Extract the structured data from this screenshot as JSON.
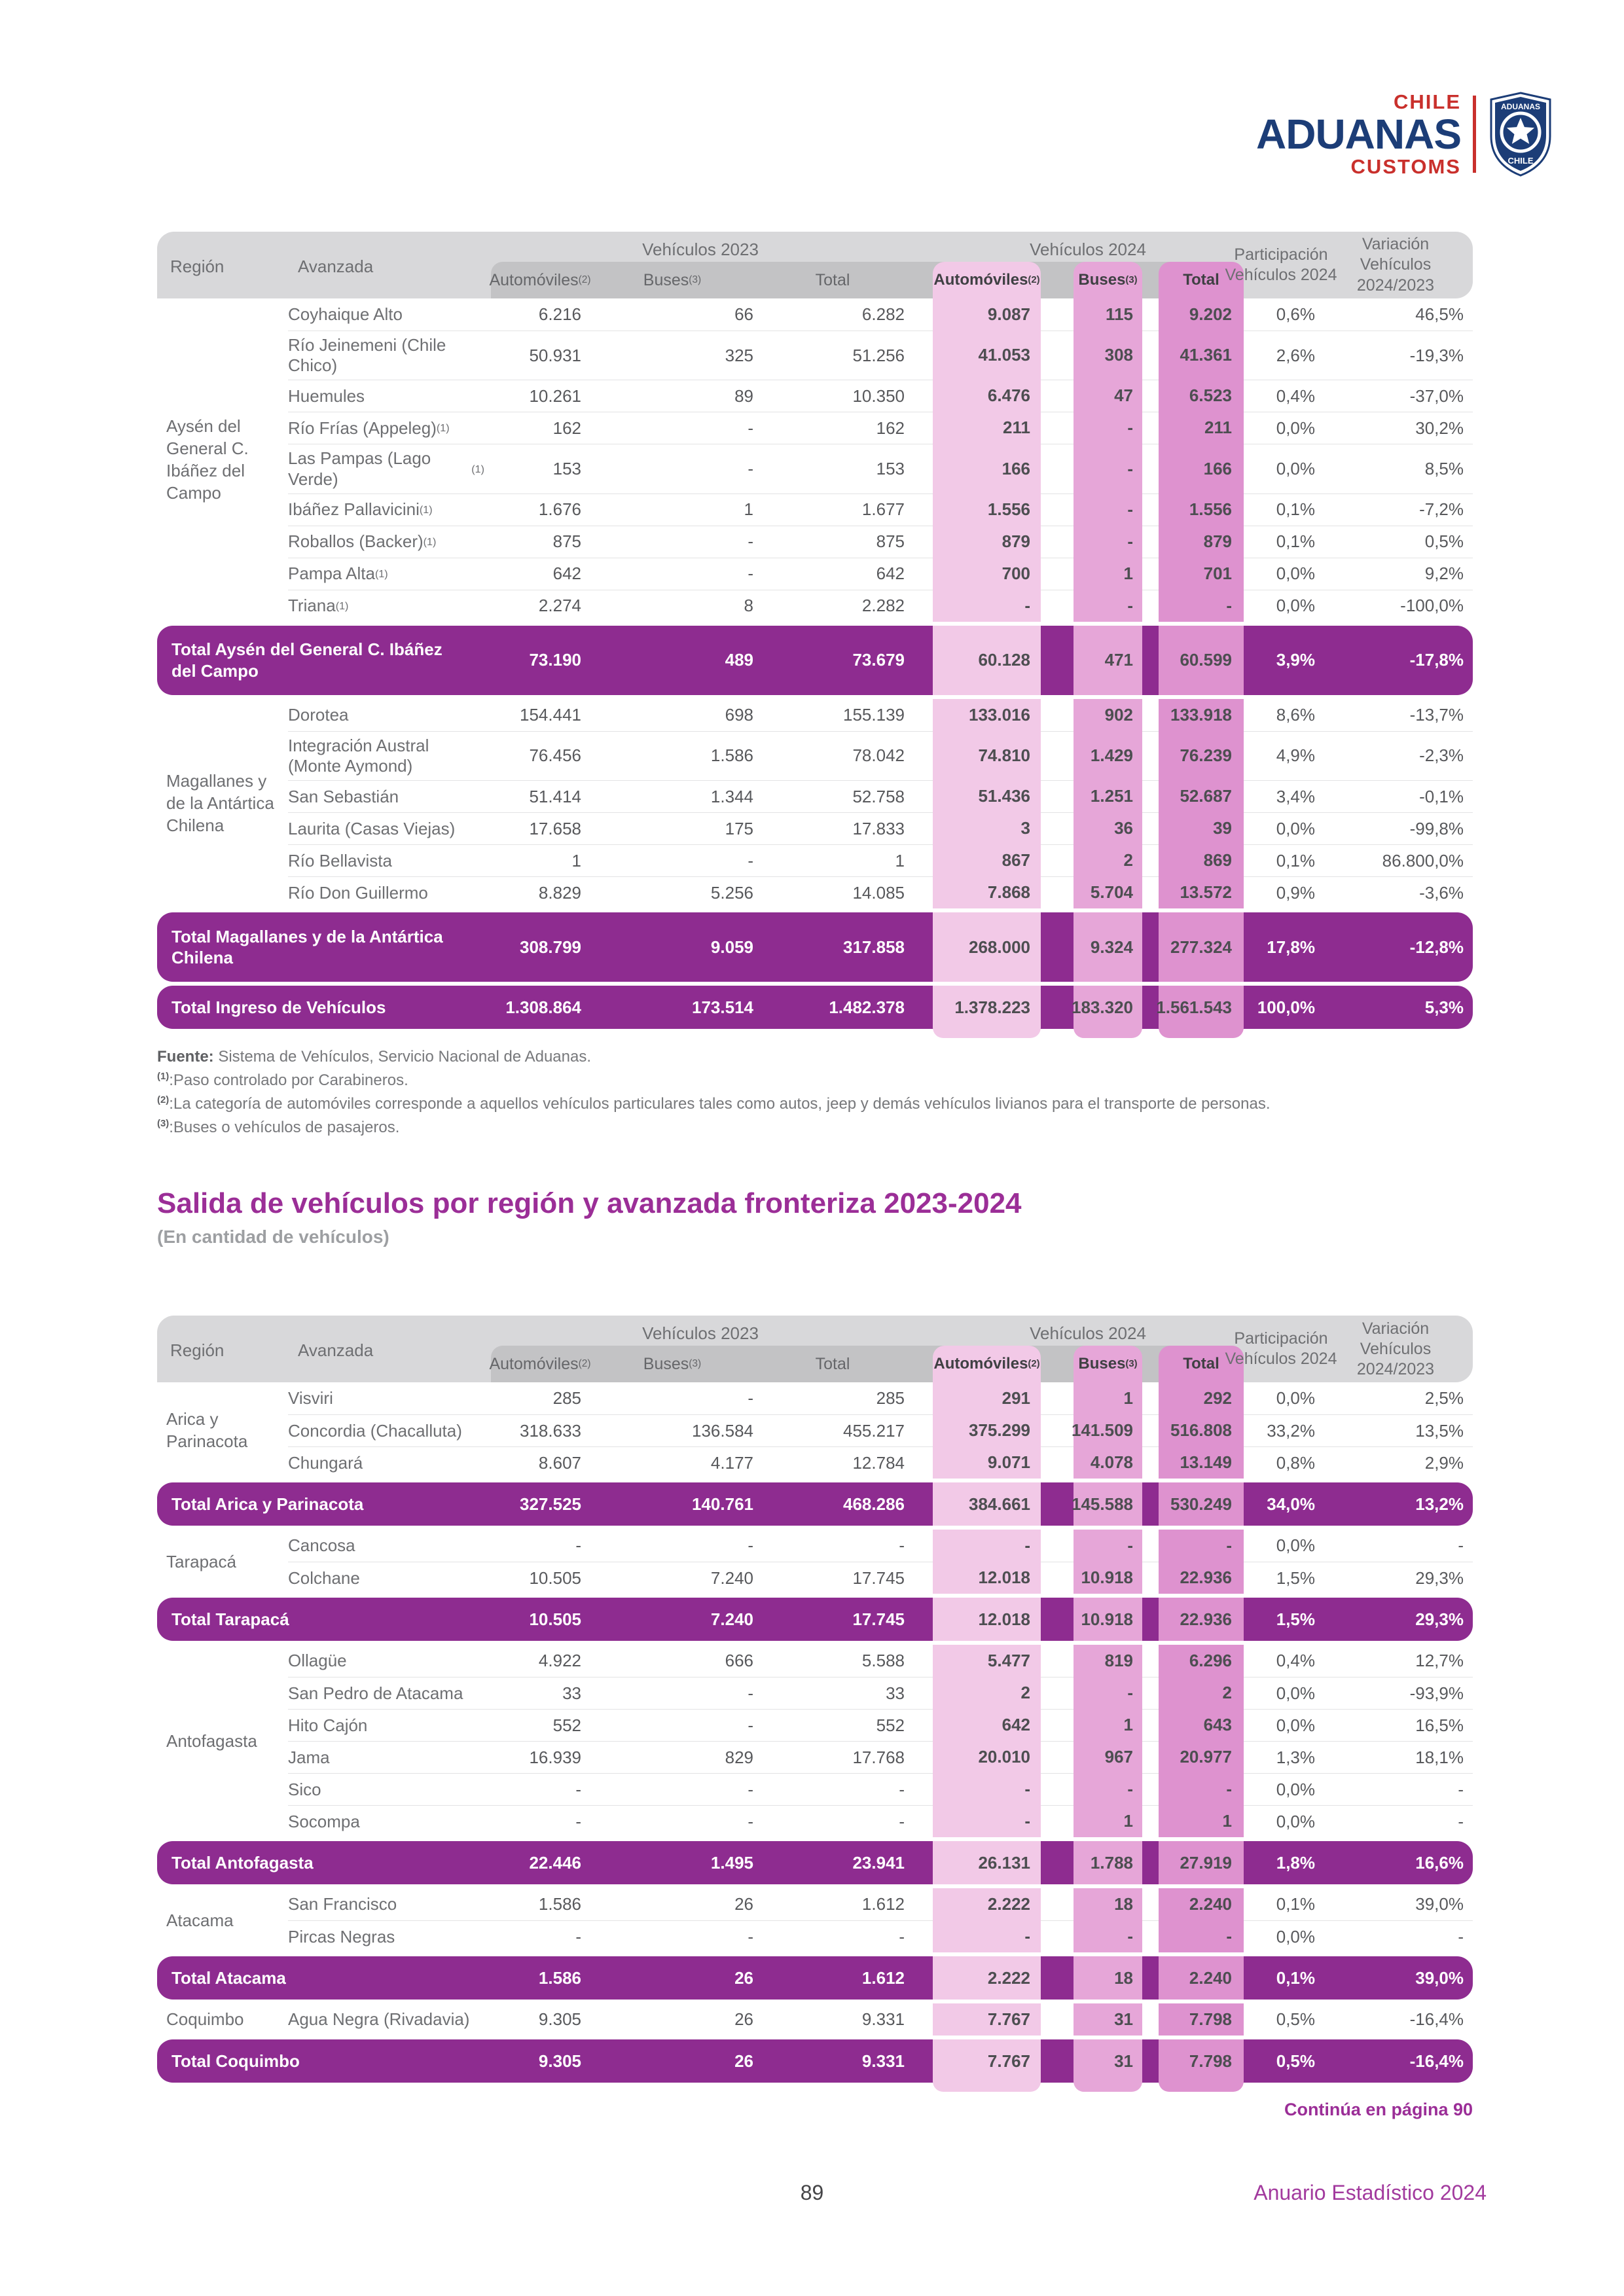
{
  "logo": {
    "chile": "CHILE",
    "aduanas": "ADUANAS",
    "customs": "CUSTOMS",
    "badge_top": "ADUANAS",
    "badge_bottom": "CHILE"
  },
  "headers": {
    "region": "Región",
    "avanzada": "Avanzada",
    "g2023": "Vehículos 2023",
    "g2024": "Vehículos 2024",
    "automoviles": "Automóviles",
    "automoviles_sup": "(2)",
    "buses": "Buses",
    "buses_sup": "(3)",
    "total": "Total",
    "participacion": "Participación Vehículos 2024",
    "variacion": "Variación Vehículos 2024/2023"
  },
  "table1": {
    "sections": [
      {
        "region": "Aysén del General C. Ibáñez del Campo",
        "rows": [
          {
            "name": "Coyhaique Alto",
            "sup": "",
            "v": [
              "6.216",
              "66",
              "6.282",
              "9.087",
              "115",
              "9.202",
              "0,6%",
              "46,5%"
            ]
          },
          {
            "name": "Río Jeinemeni (Chile Chico)",
            "sup": "",
            "v": [
              "50.931",
              "325",
              "51.256",
              "41.053",
              "308",
              "41.361",
              "2,6%",
              "-19,3%"
            ]
          },
          {
            "name": "Huemules",
            "sup": "",
            "v": [
              "10.261",
              "89",
              "10.350",
              "6.476",
              "47",
              "6.523",
              "0,4%",
              "-37,0%"
            ]
          },
          {
            "name": "Río Frías (Appeleg)",
            "sup": "(1)",
            "v": [
              "162",
              "-",
              "162",
              "211",
              "-",
              "211",
              "0,0%",
              "30,2%"
            ]
          },
          {
            "name": "Las Pampas (Lago Verde)",
            "sup": "(1)",
            "v": [
              "153",
              "-",
              "153",
              "166",
              "-",
              "166",
              "0,0%",
              "8,5%"
            ]
          },
          {
            "name": "Ibáñez Pallavicini",
            "sup": "(1)",
            "v": [
              "1.676",
              "1",
              "1.677",
              "1.556",
              "-",
              "1.556",
              "0,1%",
              "-7,2%"
            ]
          },
          {
            "name": "Roballos (Backer)",
            "sup": "(1)",
            "v": [
              "875",
              "-",
              "875",
              "879",
              "-",
              "879",
              "0,1%",
              "0,5%"
            ]
          },
          {
            "name": "Pampa Alta",
            "sup": "(1)",
            "v": [
              "642",
              "-",
              "642",
              "700",
              "1",
              "701",
              "0,0%",
              "9,2%"
            ]
          },
          {
            "name": "Triana",
            "sup": "(1)",
            "v": [
              "2.274",
              "8",
              "2.282",
              "-",
              "-",
              "-",
              "0,0%",
              "-100,0%"
            ]
          }
        ],
        "total": {
          "label": "Total Aysén del General C. Ibáñez del Campo",
          "two_line": true,
          "v": [
            "73.190",
            "489",
            "73.679",
            "60.128",
            "471",
            "60.599",
            "3,9%",
            "-17,8%"
          ]
        }
      },
      {
        "region": "Magallanes y de la Antártica Chilena",
        "rows": [
          {
            "name": "Dorotea",
            "sup": "",
            "v": [
              "154.441",
              "698",
              "155.139",
              "133.016",
              "902",
              "133.918",
              "8,6%",
              "-13,7%"
            ]
          },
          {
            "name": "Integración Austral (Monte Aymond)",
            "sup": "",
            "v": [
              "76.456",
              "1.586",
              "78.042",
              "74.810",
              "1.429",
              "76.239",
              "4,9%",
              "-2,3%"
            ]
          },
          {
            "name": "San Sebastián",
            "sup": "",
            "v": [
              "51.414",
              "1.344",
              "52.758",
              "51.436",
              "1.251",
              "52.687",
              "3,4%",
              "-0,1%"
            ]
          },
          {
            "name": "Laurita (Casas Viejas)",
            "sup": "",
            "v": [
              "17.658",
              "175",
              "17.833",
              "3",
              "36",
              "39",
              "0,0%",
              "-99,8%"
            ]
          },
          {
            "name": "Río Bellavista",
            "sup": "",
            "v": [
              "1",
              "-",
              "1",
              "867",
              "2",
              "869",
              "0,1%",
              "86.800,0%"
            ]
          },
          {
            "name": "Río Don Guillermo",
            "sup": "",
            "v": [
              "8.829",
              "5.256",
              "14.085",
              "7.868",
              "5.704",
              "13.572",
              "0,9%",
              "-3,6%"
            ]
          }
        ],
        "total": {
          "label": "Total Magallanes y de la Antártica Chilena",
          "two_line": true,
          "v": [
            "308.799",
            "9.059",
            "317.858",
            "268.000",
            "9.324",
            "277.324",
            "17,8%",
            "-12,8%"
          ]
        }
      }
    ],
    "grand_total": {
      "label": "Total Ingreso de Vehículos",
      "v": [
        "1.308.864",
        "173.514",
        "1.482.378",
        "1.378.223",
        "183.320",
        "1.561.543",
        "100,0%",
        "5,3%"
      ]
    }
  },
  "notes": {
    "fuente_label": "Fuente:",
    "fuente_text": " Sistema de Vehículos, Servicio Nacional de Aduanas.",
    "items": [
      {
        "sup": "(1)",
        "text": ":Paso controlado por Carabineros."
      },
      {
        "sup": "(2)",
        "text": ":La categoría de automóviles corresponde a aquellos vehículos particulares tales como autos, jeep y demás vehículos livianos para el transporte de personas."
      },
      {
        "sup": "(3)",
        "text": ":Buses o vehículos de pasajeros."
      }
    ]
  },
  "section2": {
    "title": "Salida de vehículos por región y avanzada fronteriza 2023-2024",
    "subtitle": "(En cantidad de vehículos)"
  },
  "table2": {
    "sections": [
      {
        "region": "Arica y Parinacota",
        "rows": [
          {
            "name": "Visviri",
            "sup": "",
            "v": [
              "285",
              "-",
              "285",
              "291",
              "1",
              "292",
              "0,0%",
              "2,5%"
            ]
          },
          {
            "name": "Concordia (Chacalluta)",
            "sup": "",
            "v": [
              "318.633",
              "136.584",
              "455.217",
              "375.299",
              "141.509",
              "516.808",
              "33,2%",
              "13,5%"
            ]
          },
          {
            "name": "Chungará",
            "sup": "",
            "v": [
              "8.607",
              "4.177",
              "12.784",
              "9.071",
              "4.078",
              "13.149",
              "0,8%",
              "2,9%"
            ]
          }
        ],
        "total": {
          "label": "Total Arica y Parinacota",
          "two_line": false,
          "v": [
            "327.525",
            "140.761",
            "468.286",
            "384.661",
            "145.588",
            "530.249",
            "34,0%",
            "13,2%"
          ]
        }
      },
      {
        "region": "Tarapacá",
        "rows": [
          {
            "name": "Cancosa",
            "sup": "",
            "v": [
              "-",
              "-",
              "-",
              "-",
              "-",
              "-",
              "0,0%",
              "-"
            ]
          },
          {
            "name": "Colchane",
            "sup": "",
            "v": [
              "10.505",
              "7.240",
              "17.745",
              "12.018",
              "10.918",
              "22.936",
              "1,5%",
              "29,3%"
            ]
          }
        ],
        "total": {
          "label": "Total Tarapacá",
          "two_line": false,
          "v": [
            "10.505",
            "7.240",
            "17.745",
            "12.018",
            "10.918",
            "22.936",
            "1,5%",
            "29,3%"
          ]
        }
      },
      {
        "region": "Antofagasta",
        "rows": [
          {
            "name": "Ollagüe",
            "sup": "",
            "v": [
              "4.922",
              "666",
              "5.588",
              "5.477",
              "819",
              "6.296",
              "0,4%",
              "12,7%"
            ]
          },
          {
            "name": "San Pedro de Atacama",
            "sup": "",
            "v": [
              "33",
              "-",
              "33",
              "2",
              "-",
              "2",
              "0,0%",
              "-93,9%"
            ]
          },
          {
            "name": "Hito Cajón",
            "sup": "",
            "v": [
              "552",
              "-",
              "552",
              "642",
              "1",
              "643",
              "0,0%",
              "16,5%"
            ]
          },
          {
            "name": "Jama",
            "sup": "",
            "v": [
              "16.939",
              "829",
              "17.768",
              "20.010",
              "967",
              "20.977",
              "1,3%",
              "18,1%"
            ]
          },
          {
            "name": "Sico",
            "sup": "",
            "v": [
              "-",
              "-",
              "-",
              "-",
              "-",
              "-",
              "0,0%",
              "-"
            ]
          },
          {
            "name": "Socompa",
            "sup": "",
            "v": [
              "-",
              "-",
              "-",
              "-",
              "1",
              "1",
              "0,0%",
              "-"
            ]
          }
        ],
        "total": {
          "label": "Total Antofagasta",
          "two_line": false,
          "v": [
            "22.446",
            "1.495",
            "23.941",
            "26.131",
            "1.788",
            "27.919",
            "1,8%",
            "16,6%"
          ]
        }
      },
      {
        "region": "Atacama",
        "rows": [
          {
            "name": "San Francisco",
            "sup": "",
            "v": [
              "1.586",
              "26",
              "1.612",
              "2.222",
              "18",
              "2.240",
              "0,1%",
              "39,0%"
            ]
          },
          {
            "name": "Pircas Negras",
            "sup": "",
            "v": [
              "-",
              "-",
              "-",
              "-",
              "-",
              "-",
              "0,0%",
              "-"
            ]
          }
        ],
        "total": {
          "label": "Total Atacama",
          "two_line": false,
          "v": [
            "1.586",
            "26",
            "1.612",
            "2.222",
            "18",
            "2.240",
            "0,1%",
            "39,0%"
          ]
        }
      },
      {
        "region": "Coquimbo",
        "rows": [
          {
            "name": "Agua Negra (Rivadavia)",
            "sup": "",
            "v": [
              "9.305",
              "26",
              "9.331",
              "7.767",
              "31",
              "7.798",
              "0,5%",
              "-16,4%"
            ]
          }
        ],
        "total": {
          "label": "Total Coquimbo",
          "two_line": false,
          "v": [
            "9.305",
            "26",
            "9.331",
            "7.767",
            "31",
            "7.798",
            "0,5%",
            "-16,4%"
          ]
        }
      }
    ],
    "continua": "Continúa en página 90"
  },
  "footer": {
    "page": "89",
    "right": "Anuario Estadístico 2024"
  },
  "colors": {
    "purple_row": "#8E2C90",
    "title_purple": "#9B2E97",
    "pink_automoviles_2024": "#F2C9E7",
    "pink_buses_2024": "#E6A6D8",
    "pink_total_2024": "#DE92CF",
    "header_gray": "#D8D8DA",
    "subheader_gray": "#C3C3C5",
    "logo_navy": "#1C3D77",
    "logo_red": "#C9302C",
    "footer_purple": "#A23A9E"
  }
}
